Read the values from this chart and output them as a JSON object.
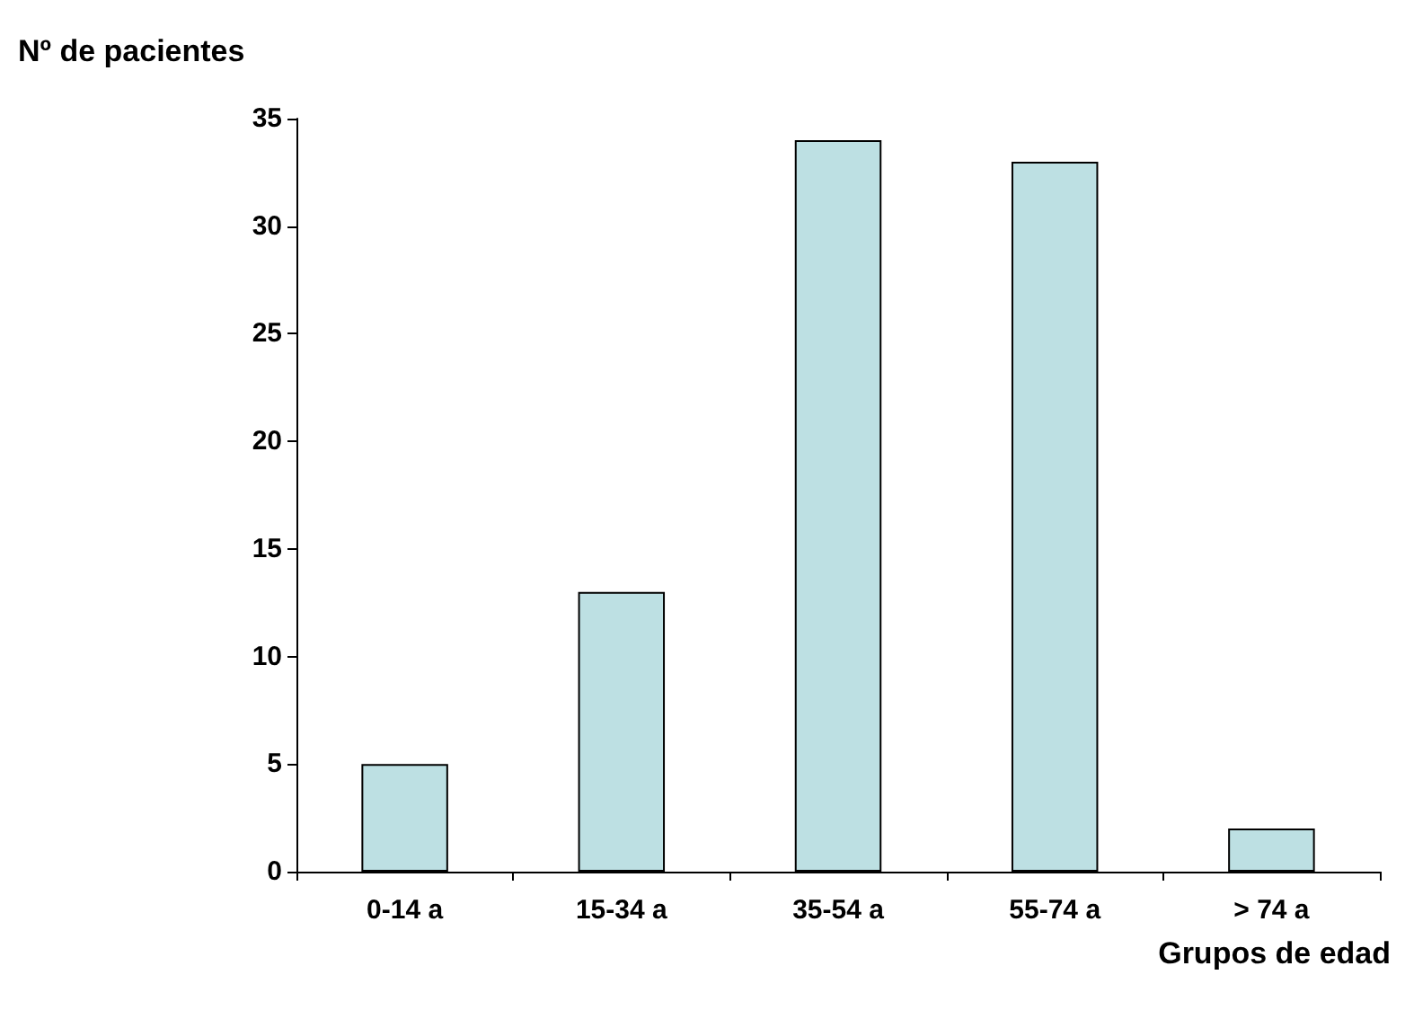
{
  "chart_data": {
    "type": "bar",
    "xlabel": "Grupos de edad",
    "ylabel": "Nº de pacientes",
    "categories": [
      "0-14 a",
      "15-34 a",
      "35-54 a",
      "55-74 a",
      "> 74 a"
    ],
    "values": [
      5,
      13,
      34,
      33,
      2
    ],
    "color": "#bde0e3",
    "ylim": [
      0,
      35
    ],
    "yticks": [
      0,
      5,
      10,
      15,
      20,
      25,
      30,
      35
    ],
    "grid": false
  }
}
